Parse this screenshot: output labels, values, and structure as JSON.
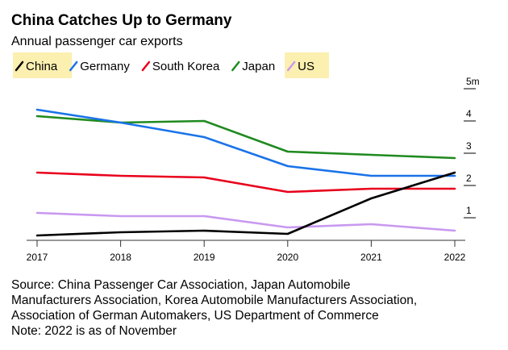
{
  "chart_data": {
    "type": "line",
    "title": "China Catches Up to Germany",
    "subtitle": "Annual passenger car exports",
    "x": [
      2017,
      2018,
      2019,
      2020,
      2021,
      2022
    ],
    "x_tick_labels": [
      "2017",
      "2018",
      "2019",
      "2020",
      "2021",
      "2022"
    ],
    "y_unit": "m",
    "ylim": [
      0.3,
      5
    ],
    "y_ticks": [
      {
        "value": 1,
        "label": "1"
      },
      {
        "value": 2,
        "label": "2"
      },
      {
        "value": 3,
        "label": "3"
      },
      {
        "value": 4,
        "label": "4"
      },
      {
        "value": 5,
        "label": "5m"
      }
    ],
    "grid": false,
    "legend_position": "top-left",
    "series": [
      {
        "name": "China",
        "color": "#000000",
        "values": [
          0.45,
          0.55,
          0.6,
          0.5,
          1.6,
          2.4
        ],
        "highlight": true
      },
      {
        "name": "Germany",
        "color": "#1a73e8",
        "values": [
          4.35,
          3.95,
          3.5,
          2.6,
          2.3,
          2.3
        ],
        "highlight": false
      },
      {
        "name": "South Korea",
        "color": "#e8001c",
        "values": [
          2.4,
          2.3,
          2.25,
          1.8,
          1.9,
          1.9
        ],
        "highlight": false
      },
      {
        "name": "Japan",
        "color": "#1f8a1f",
        "values": [
          4.15,
          3.95,
          4.0,
          3.05,
          2.95,
          2.85
        ],
        "highlight": false
      },
      {
        "name": "US",
        "color": "#c998f0",
        "values": [
          1.15,
          1.05,
          1.05,
          0.7,
          0.8,
          0.6
        ],
        "highlight": true
      }
    ],
    "legend_highlight_color": "#fbf0b0"
  },
  "source": {
    "lines": [
      "Source: China Passenger Car Association, Japan Automobile",
      "Manufacturers Association, Korea Automobile Manufacturers Association,",
      "Association of German Automakers, US Department of Commerce",
      "Note: 2022 is as of November"
    ]
  }
}
